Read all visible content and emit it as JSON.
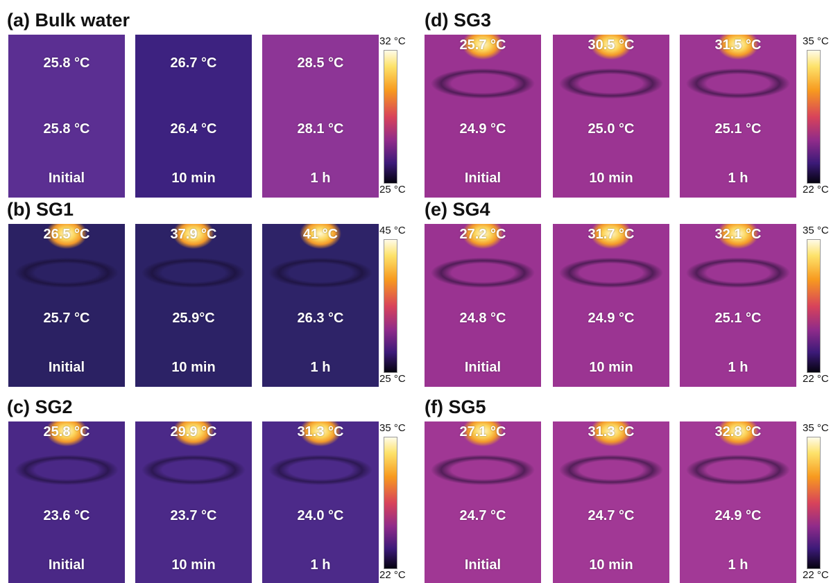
{
  "panels": [
    {
      "label": "(a) Bulk water",
      "colorbar": {
        "max": "32 °C",
        "min": "25 °C"
      },
      "images": [
        {
          "top": "25.8 °C",
          "bottom": "25.8 °C",
          "time": "Initial"
        },
        {
          "top": "26.7 °C",
          "bottom": "26.4 °C",
          "time": "10 min"
        },
        {
          "top": "28.5 °C",
          "bottom": "28.1 °C",
          "time": "1 h"
        }
      ]
    },
    {
      "label": "(b) SG1",
      "colorbar": {
        "max": "45 °C",
        "min": "25 °C"
      },
      "images": [
        {
          "top": "26.5 °C",
          "bottom": "25.7 °C",
          "time": "Initial"
        },
        {
          "top": "37.9 °C",
          "bottom": "25.9°C",
          "time": "10 min"
        },
        {
          "top": "41 °C",
          "bottom": "26.3 °C",
          "time": "1 h"
        }
      ]
    },
    {
      "label": "(c) SG2",
      "colorbar": {
        "max": "35 °C",
        "min": "22 °C"
      },
      "images": [
        {
          "top": "25.8 °C",
          "bottom": "23.6 °C",
          "time": "Initial"
        },
        {
          "top": "29.9 °C",
          "bottom": "23.7 °C",
          "time": "10 min"
        },
        {
          "top": "31.3 °C",
          "bottom": "24.0 °C",
          "time": "1 h"
        }
      ]
    },
    {
      "label": "(d) SG3",
      "colorbar": {
        "max": "35 °C",
        "min": "22 °C"
      },
      "images": [
        {
          "top": "25.7 °C",
          "bottom": "24.9 °C",
          "time": "Initial"
        },
        {
          "top": "30.5 °C",
          "bottom": "25.0 °C",
          "time": "10 min"
        },
        {
          "top": "31.5 °C",
          "bottom": "25.1 °C",
          "time": "1 h"
        }
      ]
    },
    {
      "label": "(e) SG4",
      "colorbar": {
        "max": "35 °C",
        "min": "22 °C"
      },
      "images": [
        {
          "top": "27.2 °C",
          "bottom": "24.8 °C",
          "time": "Initial"
        },
        {
          "top": "31.7 °C",
          "bottom": "24.9 °C",
          "time": "10 min"
        },
        {
          "top": "32.1 °C",
          "bottom": "25.1 °C",
          "time": "1 h"
        }
      ]
    },
    {
      "label": "(f) SG5",
      "colorbar": {
        "max": "35 °C",
        "min": "22 °C"
      },
      "images": [
        {
          "top": "27.1 °C",
          "bottom": "24.7 °C",
          "time": "Initial"
        },
        {
          "top": "31.3 °C",
          "bottom": "24.7 °C",
          "time": "10 min"
        },
        {
          "top": "32.8 °C",
          "bottom": "24.9 °C",
          "time": "1 h"
        }
      ]
    }
  ]
}
